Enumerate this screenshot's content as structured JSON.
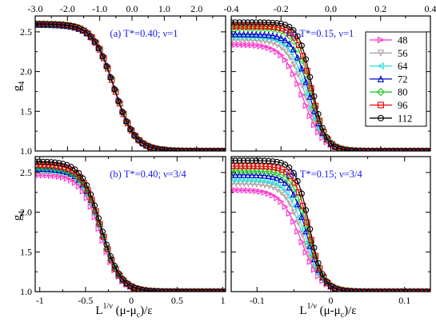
{
  "figure": {
    "ylabel": "g",
    "ylabel_sub": "4",
    "xlabel_left": "L",
    "xlabel_sup": "1/ν",
    "xlabel_mid": " (μ-μ",
    "xlabel_sub": "c",
    "xlabel_end": ")/ε"
  },
  "legend": {
    "entries": [
      {
        "label": "48",
        "color": "#ff33cc",
        "marker": "triangle-right"
      },
      {
        "label": "56",
        "color": "#b0a0a0",
        "marker": "triangle-down"
      },
      {
        "label": "64",
        "color": "#33dddd",
        "marker": "triangle-left"
      },
      {
        "label": "72",
        "color": "#0000cc",
        "marker": "triangle-up"
      },
      {
        "label": "80",
        "color": "#22cc22",
        "marker": "diamond"
      },
      {
        "label": "96",
        "color": "#ee0000",
        "marker": "square"
      },
      {
        "label": "112",
        "color": "#000000",
        "marker": "circle"
      }
    ]
  },
  "chart_data": [
    {
      "type": "line",
      "title": "(a)  T*=0.40; ν=1",
      "xlim": [
        -3.0,
        2.9
      ],
      "ylim": [
        1.0,
        2.7
      ],
      "x_ticks": [
        "-3.0",
        "-2.0",
        "-1.0",
        "0.0",
        "1.0",
        "2.0"
      ],
      "x_tick_values": [
        -3.0,
        -2.0,
        -1.0,
        0.0,
        1.0,
        2.0
      ],
      "x_ticks_position": "top",
      "y_ticks": [
        "1.0",
        "1.5",
        "2.0",
        "2.5"
      ],
      "y_tick_values": [
        1.0,
        1.5,
        2.0,
        2.5
      ],
      "series": [
        {
          "name": "48",
          "curve": {
            "high": 2.59,
            "center": -0.55,
            "width": 0.65
          }
        },
        {
          "name": "56",
          "curve": {
            "high": 2.59,
            "center": -0.55,
            "width": 0.65
          }
        },
        {
          "name": "64",
          "curve": {
            "high": 2.59,
            "center": -0.55,
            "width": 0.65
          }
        },
        {
          "name": "72",
          "curve": {
            "high": 2.59,
            "center": -0.55,
            "width": 0.65
          }
        },
        {
          "name": "80",
          "curve": {
            "high": 2.6,
            "center": -0.55,
            "width": 0.65
          }
        },
        {
          "name": "96",
          "curve": {
            "high": 2.6,
            "center": -0.55,
            "width": 0.65
          }
        },
        {
          "name": "112",
          "curve": {
            "high": 2.6,
            "center": -0.56,
            "width": 0.65
          }
        }
      ]
    },
    {
      "type": "line",
      "title": "(c)  T*=0.15, ν=1",
      "xlim": [
        -0.4,
        0.4
      ],
      "ylim": [
        1.0,
        2.7
      ],
      "x_ticks": [
        "-0.4",
        "-0.2",
        "0.0",
        "0.2",
        "0.4"
      ],
      "x_tick_values": [
        -0.4,
        -0.2,
        0.0,
        0.2,
        0.4
      ],
      "x_ticks_position": "top",
      "y_ticks": [],
      "y_tick_values": [
        1.0,
        1.5,
        2.0,
        2.5
      ],
      "series": [
        {
          "name": "48",
          "curve": {
            "high": 2.34,
            "center": -0.112,
            "width": 0.08
          }
        },
        {
          "name": "56",
          "curve": {
            "high": 2.4,
            "center": -0.101,
            "width": 0.075
          }
        },
        {
          "name": "64",
          "curve": {
            "high": 2.44,
            "center": -0.095,
            "width": 0.07
          }
        },
        {
          "name": "72",
          "curve": {
            "high": 2.47,
            "center": -0.088,
            "width": 0.065
          }
        },
        {
          "name": "80",
          "curve": {
            "high": 2.55,
            "center": -0.082,
            "width": 0.062
          }
        },
        {
          "name": "96",
          "curve": {
            "high": 2.57,
            "center": -0.078,
            "width": 0.058
          }
        },
        {
          "name": "112",
          "curve": {
            "high": 2.62,
            "center": -0.075,
            "width": 0.055
          }
        }
      ]
    },
    {
      "type": "line",
      "title": "(b)  T*=0.40; ν=3/4",
      "xlim": [
        -1.05,
        1.03
      ],
      "ylim": [
        1.0,
        2.7
      ],
      "x_ticks": [
        "-1",
        "-0.5",
        "0",
        "0.5",
        "1"
      ],
      "x_tick_values": [
        -1.0,
        -0.5,
        0.0,
        0.5,
        1.0
      ],
      "x_ticks_position": "bottom",
      "y_ticks": [
        "1.0",
        "1.5",
        "2.0",
        "2.5"
      ],
      "y_tick_values": [
        1.0,
        1.5,
        2.0,
        2.5
      ],
      "series": [
        {
          "name": "48",
          "curve": {
            "high": 2.47,
            "center": -0.34,
            "width": 0.21
          }
        },
        {
          "name": "56",
          "curve": {
            "high": 2.51,
            "center": -0.33,
            "width": 0.21
          }
        },
        {
          "name": "64",
          "curve": {
            "high": 2.53,
            "center": -0.33,
            "width": 0.21
          }
        },
        {
          "name": "72",
          "curve": {
            "high": 2.55,
            "center": -0.33,
            "width": 0.21
          }
        },
        {
          "name": "80",
          "curve": {
            "high": 2.57,
            "center": -0.33,
            "width": 0.21
          }
        },
        {
          "name": "96",
          "curve": {
            "high": 2.6,
            "center": -0.33,
            "width": 0.21
          }
        },
        {
          "name": "112",
          "curve": {
            "high": 2.64,
            "center": -0.33,
            "width": 0.21
          }
        }
      ]
    },
    {
      "type": "line",
      "title": "(d)  T*=0.15; ν=3/4",
      "xlim": [
        -0.135,
        0.135
      ],
      "ylim": [
        1.0,
        2.7
      ],
      "x_ticks": [
        "-0.1",
        "0",
        "0.1"
      ],
      "x_tick_values": [
        -0.1,
        0.0,
        0.1
      ],
      "x_ticks_position": "bottom",
      "y_ticks": [],
      "y_tick_values": [
        1.0,
        1.5,
        2.0,
        2.5
      ],
      "series": [
        {
          "name": "48",
          "curve": {
            "high": 2.28,
            "center": -0.04,
            "width": 0.027
          }
        },
        {
          "name": "56",
          "curve": {
            "high": 2.36,
            "center": -0.037,
            "width": 0.025
          }
        },
        {
          "name": "64",
          "curve": {
            "high": 2.41,
            "center": -0.035,
            "width": 0.024
          }
        },
        {
          "name": "72",
          "curve": {
            "high": 2.47,
            "center": -0.033,
            "width": 0.022
          }
        },
        {
          "name": "80",
          "curve": {
            "high": 2.52,
            "center": -0.031,
            "width": 0.021
          }
        },
        {
          "name": "96",
          "curve": {
            "high": 2.58,
            "center": -0.03,
            "width": 0.02
          }
        },
        {
          "name": "112",
          "curve": {
            "high": 2.65,
            "center": -0.029,
            "width": 0.019
          }
        }
      ]
    }
  ]
}
